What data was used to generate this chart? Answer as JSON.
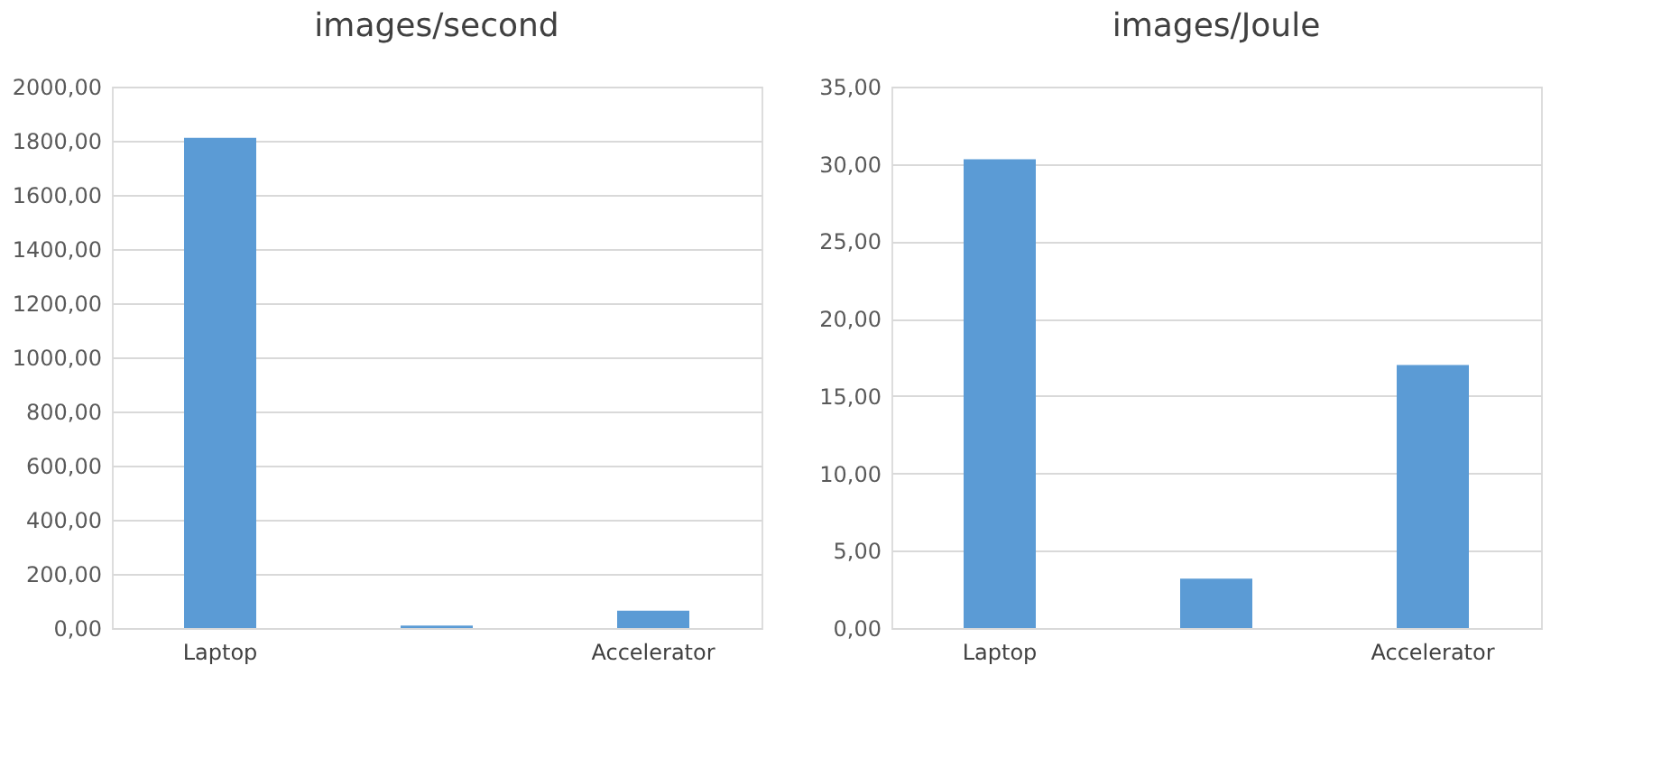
{
  "chart_data": [
    {
      "type": "bar",
      "title": "images/second",
      "categories": [
        "Laptop",
        null,
        "Accelerator"
      ],
      "values": [
        1811,
        9,
        64
      ],
      "color": "#5b9bd5",
      "ylim": [
        0,
        2000
      ],
      "yticks": [
        {
          "value": 0,
          "label": "0,00"
        },
        {
          "value": 200,
          "label": "200,00"
        },
        {
          "value": 400,
          "label": "400,00"
        },
        {
          "value": 600,
          "label": "600,00"
        },
        {
          "value": 800,
          "label": "800,00"
        },
        {
          "value": 1000,
          "label": "1000,00"
        },
        {
          "value": 1200,
          "label": "1200,00"
        },
        {
          "value": 1400,
          "label": "1400,00"
        },
        {
          "value": 1600,
          "label": "1600,00"
        },
        {
          "value": 1800,
          "label": "1800,00"
        },
        {
          "value": 2000,
          "label": "2000,00"
        }
      ],
      "grid": "y"
    },
    {
      "type": "bar",
      "title": "images/Joule",
      "categories": [
        "Laptop",
        null,
        "Accelerator"
      ],
      "values": [
        30.3,
        3.2,
        17.0
      ],
      "color": "#5b9bd5",
      "ylim": [
        0,
        35
      ],
      "yticks": [
        {
          "value": 0,
          "label": "0,00"
        },
        {
          "value": 5,
          "label": "5,00"
        },
        {
          "value": 10,
          "label": "10,00"
        },
        {
          "value": 15,
          "label": "15,00"
        },
        {
          "value": 20,
          "label": "20,00"
        },
        {
          "value": 25,
          "label": "25,00"
        },
        {
          "value": 30,
          "label": "30,00"
        },
        {
          "value": 35,
          "label": "35,00"
        }
      ],
      "grid": "y"
    }
  ]
}
